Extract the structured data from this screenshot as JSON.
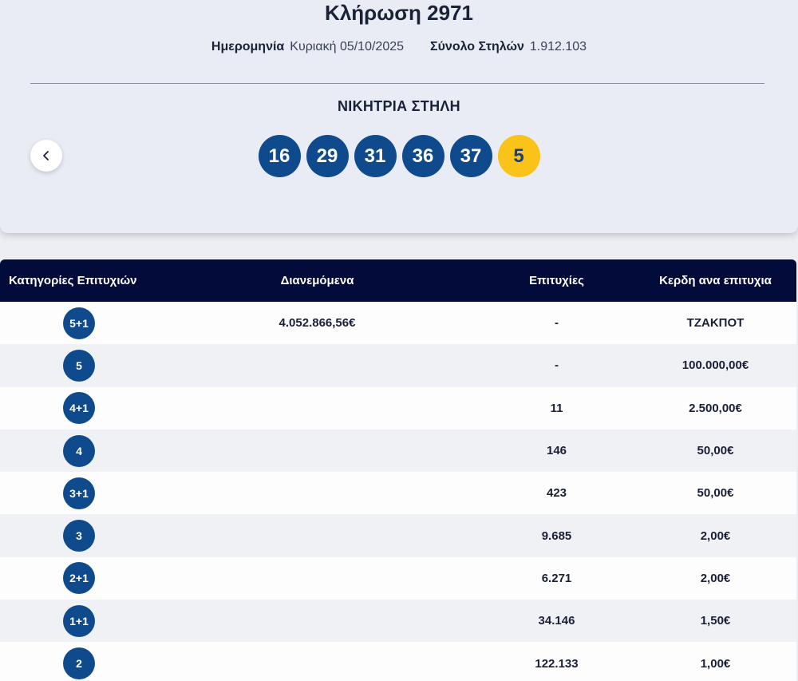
{
  "draw": {
    "title": "Κλήρωση 2971",
    "date_label": "Ημερομηνία",
    "date_value": "Κυριακή 05/10/2025",
    "columns_label": "Σύνολο Στηλών",
    "columns_value": "1.912.103",
    "winning_label": "ΝΙΚΗΤΡΙΑ ΣΤΗΛΗ",
    "numbers": [
      "16",
      "29",
      "31",
      "36",
      "37"
    ],
    "joker": "5",
    "prev_icon": "chevron-left-icon"
  },
  "colors": {
    "ball": "#0f4a8c",
    "joker": "#f9c31a",
    "table_header": "#030b3b"
  },
  "table": {
    "headers": {
      "category": "Κατηγορίες Επιτυχιών",
      "distributed": "Διανεμόμενα",
      "winners": "Επιτυχίες",
      "prize": "Κερδη ανα επιτυχια"
    },
    "rows": [
      {
        "category": "5+1",
        "distributed": "4.052.866,56€",
        "winners": "-",
        "prize": "ΤΖΑΚΠΟΤ"
      },
      {
        "category": "5",
        "distributed": "",
        "winners": "-",
        "prize": "100.000,00€"
      },
      {
        "category": "4+1",
        "distributed": "",
        "winners": "11",
        "prize": "2.500,00€"
      },
      {
        "category": "4",
        "distributed": "",
        "winners": "146",
        "prize": "50,00€"
      },
      {
        "category": "3+1",
        "distributed": "",
        "winners": "423",
        "prize": "50,00€"
      },
      {
        "category": "3",
        "distributed": "",
        "winners": "9.685",
        "prize": "2,00€"
      },
      {
        "category": "2+1",
        "distributed": "",
        "winners": "6.271",
        "prize": "2,00€"
      },
      {
        "category": "1+1",
        "distributed": "",
        "winners": "34.146",
        "prize": "1,50€"
      },
      {
        "category": "2",
        "distributed": "",
        "winners": "122.133",
        "prize": "1,00€"
      }
    ]
  }
}
